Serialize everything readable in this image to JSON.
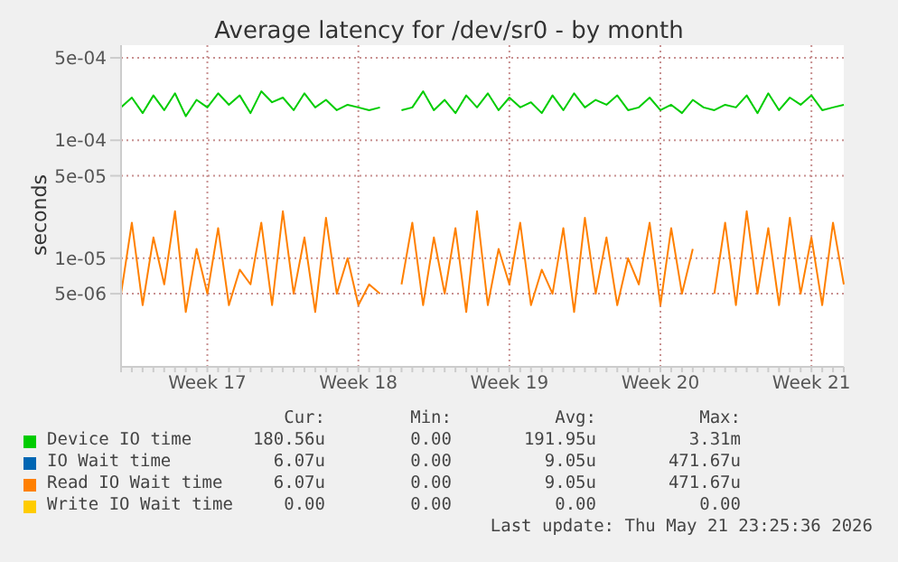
{
  "chart_data": {
    "type": "line",
    "title": "Average latency for /dev/sr0 - by month",
    "ylabel": "seconds",
    "log": "y",
    "grid": true,
    "marker": "none",
    "line_style": "solid",
    "legend": "bottom",
    "categories": [
      null,
      null,
      null,
      null,
      null,
      null,
      null,
      null,
      "Week 17",
      null,
      null,
      null,
      null,
      null,
      null,
      null,
      null,
      null,
      null,
      null,
      null,
      null,
      "Week 18",
      null,
      null,
      null,
      null,
      null,
      null,
      null,
      null,
      null,
      null,
      null,
      null,
      null,
      "Week 19",
      null,
      null,
      null,
      null,
      null,
      null,
      null,
      null,
      null,
      null,
      null,
      null,
      null,
      "Week 20",
      null,
      null,
      null,
      null,
      null,
      null,
      null,
      null,
      null,
      null,
      null,
      null,
      null,
      "Week 21",
      null,
      null,
      null
    ],
    "ylim": [
      1.2e-06,
      0.00064
    ],
    "yticks": [
      {
        "value": 5e-06,
        "label": "5e-06"
      },
      {
        "value": 1e-05,
        "label": "1e-05"
      },
      {
        "value": 5e-05,
        "label": "5e-05"
      },
      {
        "value": 0.0001,
        "label": "1e-04"
      },
      {
        "value": 0.0005,
        "label": "5e-04"
      }
    ],
    "series": [
      {
        "name": "Device IO time",
        "color": "#00cc00",
        "values": [
          0.00019,
          0.00023,
          0.00017,
          0.00024,
          0.00018,
          0.00025,
          0.00016,
          0.00022,
          0.00019,
          0.00025,
          0.0002,
          0.00024,
          0.00017,
          0.00026,
          0.00021,
          0.00023,
          0.00018,
          0.00025,
          0.00019,
          0.00022,
          0.00018,
          0.0002,
          0.00019,
          0.00018,
          0.00019,
          null,
          0.00018,
          0.00019,
          0.00026,
          0.00018,
          0.00022,
          0.00017,
          0.00024,
          0.00019,
          0.00025,
          0.00018,
          0.00023,
          0.00019,
          0.00021,
          0.00017,
          0.00024,
          0.00018,
          0.00025,
          0.00019,
          0.00022,
          0.0002,
          0.00024,
          0.00018,
          0.00019,
          0.00023,
          0.00018,
          0.0002,
          0.00017,
          0.00022,
          0.00019,
          0.00018,
          0.0002,
          0.00019,
          0.00024,
          0.00017,
          0.00025,
          0.00018,
          0.00023,
          0.0002,
          0.00024,
          0.00018,
          0.00019,
          0.0002
        ]
      },
      {
        "name": "IO Wait time",
        "color": "#0066b3",
        "values": [
          null,
          null,
          null,
          null,
          null,
          null,
          null,
          null,
          null,
          null,
          null,
          null,
          null,
          null,
          null,
          null,
          null,
          null,
          null,
          null,
          null,
          null,
          null,
          null,
          null,
          null,
          null,
          null,
          null,
          null,
          null,
          null,
          null,
          null,
          null,
          null,
          null,
          null,
          null,
          null,
          null,
          null,
          null,
          null,
          null,
          null,
          null,
          null,
          null,
          null,
          null,
          null,
          null,
          null,
          null,
          null,
          null,
          null,
          null,
          null,
          null,
          null,
          null,
          null,
          null,
          null,
          null,
          null
        ]
      },
      {
        "name": "Read IO Wait time",
        "color": "#ff8000",
        "values": [
          5e-06,
          2e-05,
          4e-06,
          1.5e-05,
          6e-06,
          2.5e-05,
          3.5e-06,
          1.2e-05,
          5e-06,
          1.8e-05,
          4e-06,
          8e-06,
          6e-06,
          2e-05,
          4e-06,
          2.5e-05,
          5e-06,
          1.5e-05,
          3.5e-06,
          2.2e-05,
          5e-06,
          1e-05,
          4e-06,
          6e-06,
          5e-06,
          null,
          6e-06,
          2e-05,
          4e-06,
          1.5e-05,
          5e-06,
          1.8e-05,
          3.5e-06,
          2.5e-05,
          4e-06,
          1.2e-05,
          6e-06,
          2e-05,
          4e-06,
          8e-06,
          5e-06,
          1.8e-05,
          3.5e-06,
          2.2e-05,
          5e-06,
          1.5e-05,
          4e-06,
          1e-05,
          6e-06,
          2e-05,
          4e-06,
          1.8e-05,
          5e-06,
          1.2e-05,
          null,
          5e-06,
          2e-05,
          4e-06,
          2.5e-05,
          5e-06,
          1.8e-05,
          4e-06,
          2.2e-05,
          5e-06,
          1.5e-05,
          4e-06,
          2e-05,
          6e-06
        ]
      },
      {
        "name": "Write IO Wait time",
        "color": "#ffcc00",
        "values": [
          null,
          null,
          null,
          null,
          null,
          null,
          null,
          null,
          null,
          null,
          null,
          null,
          null,
          null,
          null,
          null,
          null,
          null,
          null,
          null,
          null,
          null,
          null,
          null,
          null,
          null,
          null,
          null,
          null,
          null,
          null,
          null,
          null,
          null,
          null,
          null,
          null,
          null,
          null,
          null,
          null,
          null,
          null,
          null,
          null,
          null,
          null,
          null,
          null,
          null,
          null,
          null,
          null,
          null,
          null,
          null,
          null,
          null,
          null,
          null,
          null,
          null,
          null,
          null,
          null,
          null,
          null,
          null
        ]
      }
    ],
    "annotations": [
      "Cur:",
      "Min:",
      "Avg:",
      "Max:",
      "180.56u",
      "0.00",
      "191.95u",
      "3.31m",
      "6.07u",
      "0.00",
      "9.05u",
      "471.67u",
      "6.07u",
      "0.00",
      "9.05u",
      "471.67u",
      "0.00",
      "0.00",
      "0.00",
      "0.00",
      "Last update: Thu May 21 23:25:36 2026"
    ]
  }
}
